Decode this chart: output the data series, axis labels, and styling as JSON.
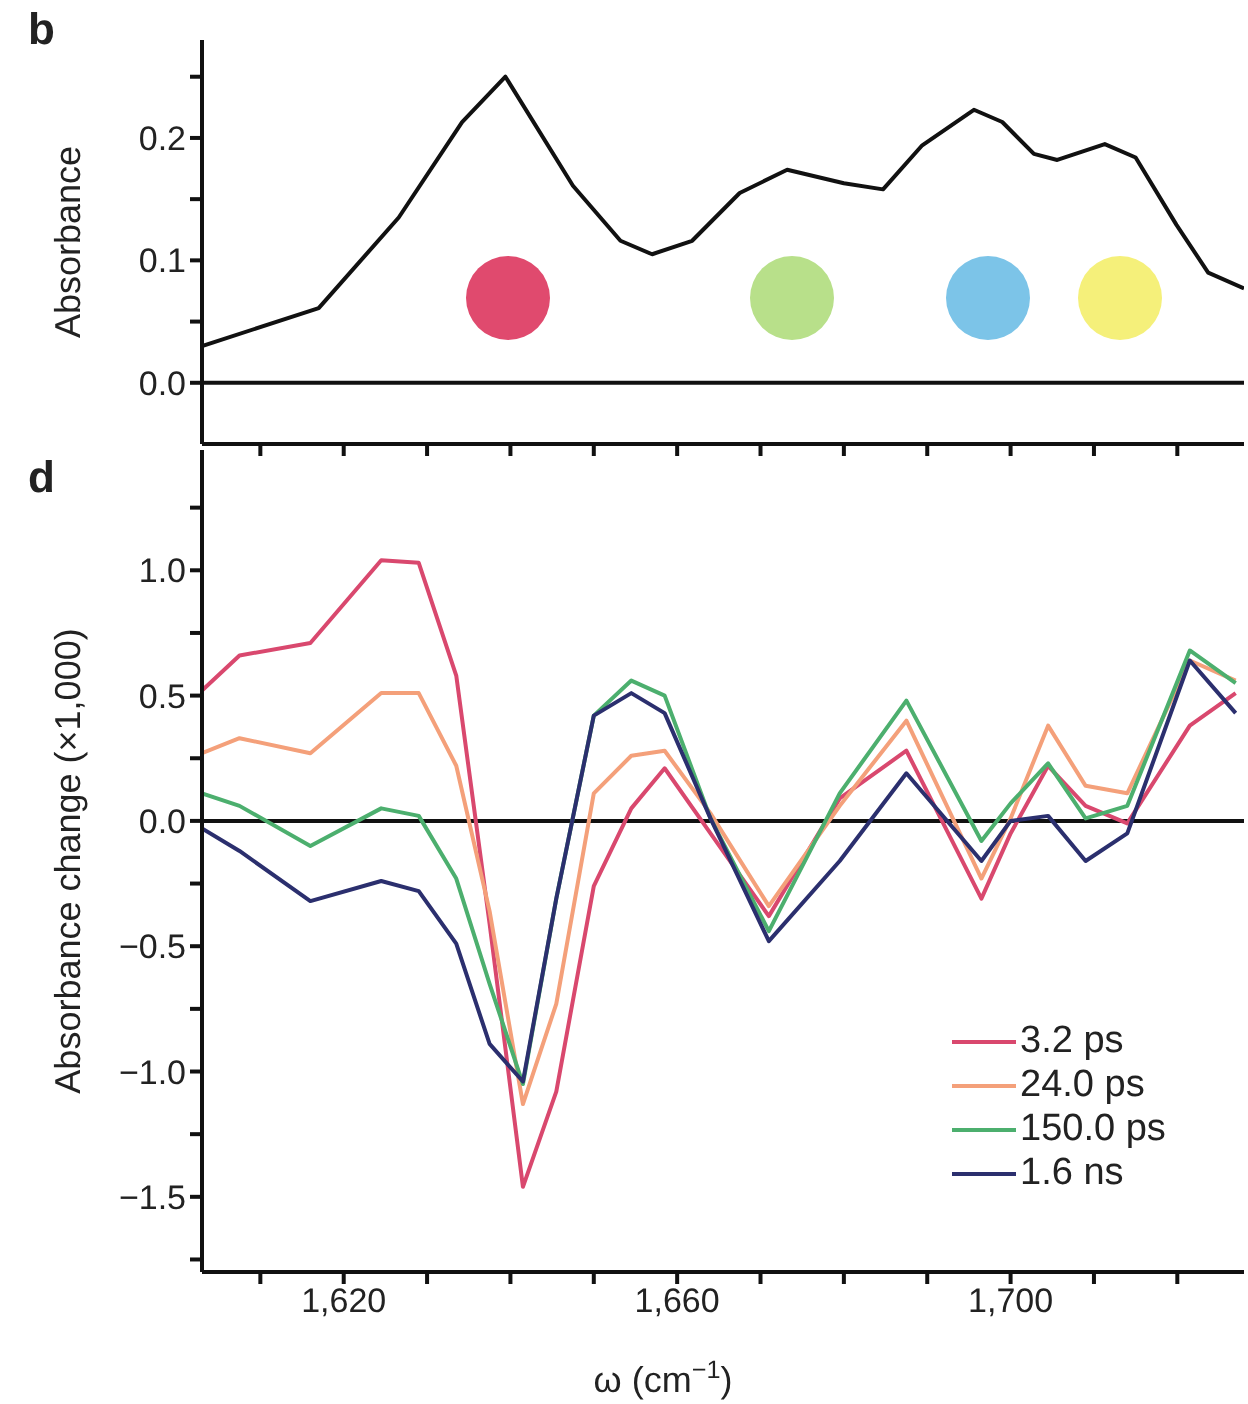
{
  "chart_data": [
    {
      "type": "line",
      "title": "b",
      "ylabel": "Absorbance",
      "xlim": [
        1603,
        1728
      ],
      "xticks": [
        1610,
        1620,
        1630,
        1640,
        1650,
        1660,
        1670,
        1680,
        1690,
        1700,
        1710,
        1720
      ],
      "ylim": [
        -0.05,
        0.28
      ],
      "yticks": [
        {
          "value": 0,
          "label": "0.0"
        },
        {
          "value": 0.05,
          "label": null
        },
        {
          "value": 0.1,
          "label": "0.1"
        },
        {
          "value": 0.15,
          "label": null
        },
        {
          "value": 0.2,
          "label": "0.2"
        },
        {
          "value": 0.25,
          "label": null
        }
      ],
      "tick_labels": "y",
      "legend": false,
      "ref_lines": [
        {
          "axis": "y",
          "value": 0,
          "color": "#111111"
        }
      ],
      "series": [
        {
          "color": "#111111",
          "x": [
            1603,
            1617,
            1626.6,
            1634.2,
            1639.4,
            1647.5,
            1653.2,
            1657,
            1661.8,
            1667.5,
            1673.2,
            1680,
            1684.7,
            1689.4,
            1695.6,
            1699,
            1702.8,
            1705.6,
            1711.3,
            1715,
            1719.9,
            1723.7,
            1728
          ],
          "values": [
            0.03,
            0.061,
            0.135,
            0.213,
            0.25,
            0.161,
            0.116,
            0.105,
            0.116,
            0.155,
            0.174,
            0.163,
            0.158,
            0.194,
            0.223,
            0.213,
            0.187,
            0.182,
            0.195,
            0.184,
            0.129,
            0.09,
            0.077
          ]
        }
      ]
    },
    {
      "type": "line",
      "title": "d",
      "ylabel": "Absorbance change (×1,000)",
      "xlabel": "ω (cm$^{−1}$)",
      "x": [
        1603,
        1607.5,
        1616,
        1624.5,
        1629,
        1633.5,
        1637.5,
        1641.5,
        1645.5,
        1650,
        1654.5,
        1658.5,
        1664,
        1671,
        1679.5,
        1687.5,
        1696.5,
        1700,
        1704.5,
        1709,
        1714,
        1721.5,
        1727
      ],
      "xlim": [
        1603,
        1728
      ],
      "xticks": [
        {
          "value": 1610,
          "label": null
        },
        {
          "value": 1620,
          "label": "1,620"
        },
        {
          "value": 1630,
          "label": null
        },
        {
          "value": 1640,
          "label": null
        },
        {
          "value": 1650,
          "label": null
        },
        {
          "value": 1660,
          "label": "1,660"
        },
        {
          "value": 1670,
          "label": null
        },
        {
          "value": 1680,
          "label": null
        },
        {
          "value": 1690,
          "label": null
        },
        {
          "value": 1700,
          "label": "1,700"
        },
        {
          "value": 1710,
          "label": null
        },
        {
          "value": 1720,
          "label": null
        }
      ],
      "ylim": [
        -1.8,
        1.48
      ],
      "yticks": [
        {
          "value": -1.75,
          "label": null
        },
        {
          "value": -1.5,
          "label": "−1.5"
        },
        {
          "value": -1.25,
          "label": null
        },
        {
          "value": -1,
          "label": "−1.0"
        },
        {
          "value": -0.75,
          "label": null
        },
        {
          "value": -0.5,
          "label": "−0.5"
        },
        {
          "value": -0.25,
          "label": null
        },
        {
          "value": 0,
          "label": "0.0"
        },
        {
          "value": 0.25,
          "label": null
        },
        {
          "value": 0.5,
          "label": "0.5"
        },
        {
          "value": 0.75,
          "label": null
        },
        {
          "value": 1,
          "label": "1.0"
        },
        {
          "value": 1.25,
          "label": null
        }
      ],
      "legend": "bottom right",
      "ref_lines": [
        {
          "axis": "y",
          "value": 0,
          "color": "#111111"
        }
      ],
      "series": [
        {
          "name": "3.2 ps",
          "color": "#d9486e",
          "values": [
            0.52,
            0.66,
            0.71,
            1.04,
            1.03,
            0.58,
            -0.41,
            -1.46,
            -1.08,
            -0.26,
            0.05,
            0.21,
            -0.05,
            -0.38,
            0.09,
            0.28,
            -0.31,
            -0.05,
            0.22,
            0.06,
            -0.01,
            0.38,
            0.51
          ]
        },
        {
          "name": "24.0 ps",
          "color": "#f4a07a",
          "values": [
            0.27,
            0.33,
            0.27,
            0.51,
            0.51,
            0.22,
            -0.36,
            -1.13,
            -0.73,
            0.11,
            0.26,
            0.28,
            0.03,
            -0.34,
            0.06,
            0.4,
            -0.23,
            0.01,
            0.38,
            0.14,
            0.11,
            0.64,
            0.56
          ]
        },
        {
          "name": "150.0 ps",
          "color": "#4caf6e",
          "values": [
            0.11,
            0.06,
            -0.1,
            0.05,
            0.02,
            -0.23,
            -0.65,
            -1.05,
            -0.31,
            0.42,
            0.56,
            0.5,
            0.01,
            -0.44,
            0.11,
            0.48,
            -0.08,
            0.07,
            0.23,
            0.01,
            0.06,
            0.68,
            0.55
          ]
        },
        {
          "name": "1.6 ns",
          "color": "#2b2f6e",
          "values": [
            -0.03,
            -0.12,
            -0.32,
            -0.24,
            -0.28,
            -0.49,
            -0.89,
            -1.04,
            -0.31,
            0.42,
            0.51,
            0.43,
            0.01,
            -0.48,
            -0.16,
            0.19,
            -0.16,
            0,
            0.02,
            -0.16,
            -0.05,
            0.64,
            0.43
          ]
        }
      ]
    }
  ]
}
